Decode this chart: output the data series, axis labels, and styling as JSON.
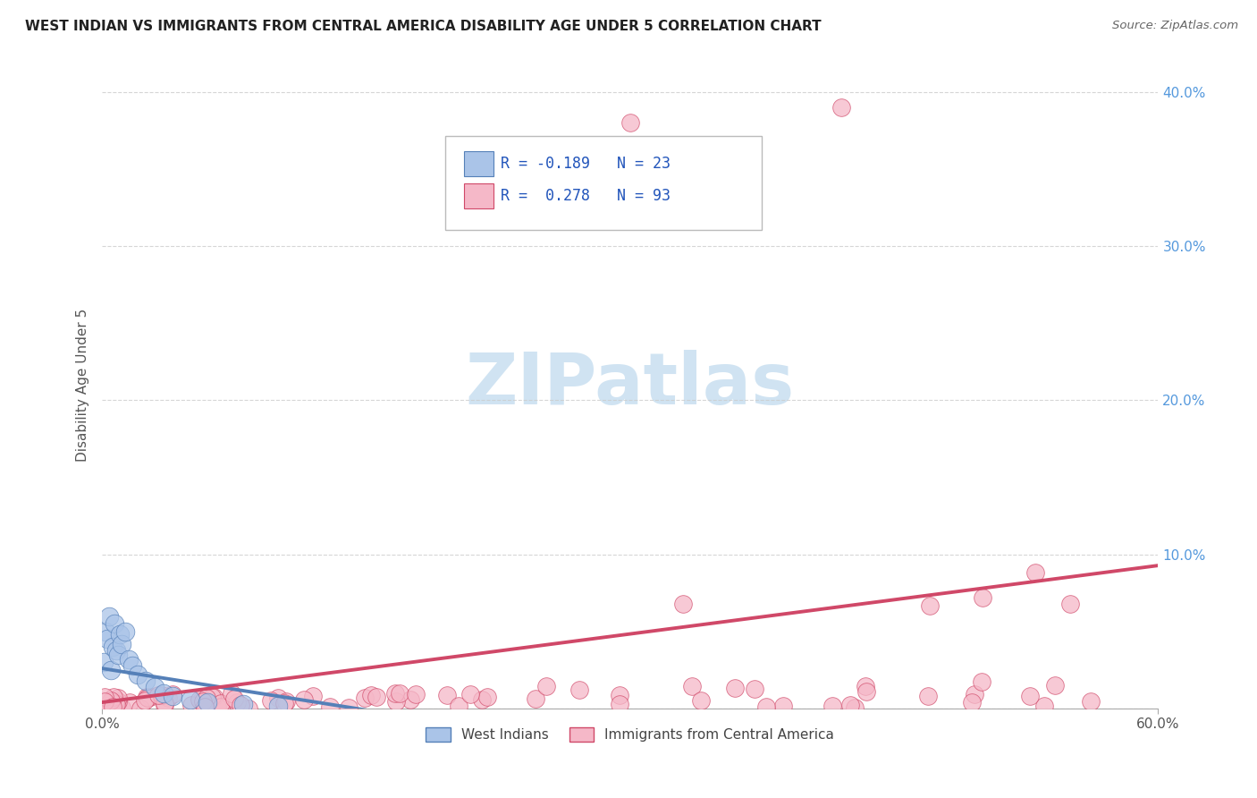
{
  "title": "WEST INDIAN VS IMMIGRANTS FROM CENTRAL AMERICA DISABILITY AGE UNDER 5 CORRELATION CHART",
  "source": "Source: ZipAtlas.com",
  "ylabel": "Disability Age Under 5",
  "legend1_label": "West Indians",
  "legend2_label": "Immigrants from Central America",
  "r1": -0.189,
  "n1": 23,
  "r2": 0.278,
  "n2": 93,
  "color_blue": "#aac4e8",
  "color_pink": "#f5b8c8",
  "color_blue_line": "#5580b8",
  "color_pink_line": "#d04868",
  "watermark_color": "#c8dff0",
  "xlim": [
    0,
    0.6
  ],
  "ylim": [
    0,
    0.42
  ],
  "yticks": [
    0.0,
    0.1,
    0.2,
    0.3,
    0.4
  ],
  "ytick_labels": [
    "",
    "10.0%",
    "20.0%",
    "30.0%",
    "40.0%"
  ],
  "xtick_left_label": "0.0%",
  "xtick_right_label": "60.0%"
}
